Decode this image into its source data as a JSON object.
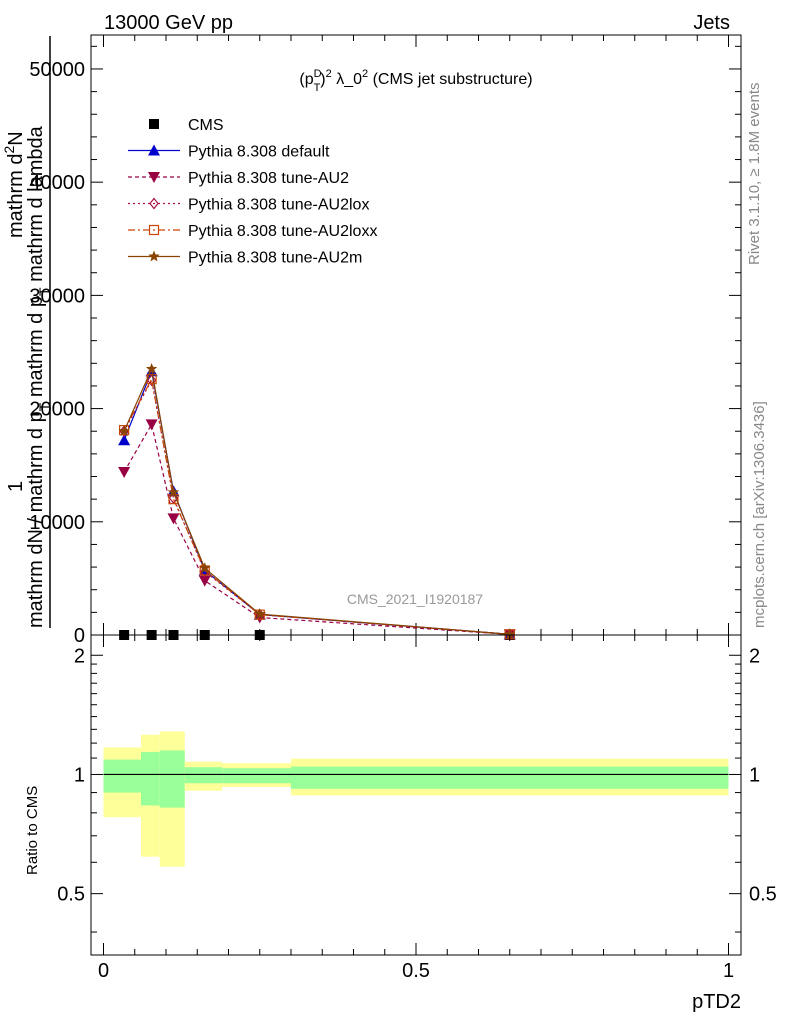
{
  "header": {
    "left": "13000 GeV pp",
    "right": "Jets"
  },
  "side_labels": {
    "rivet": "Rivet 3.1.10, ≥ 1.8M events",
    "mcplots": "mcplots.cern.ch [arXiv:1306.3436]"
  },
  "watermark": "CMS_2021_I1920187",
  "colors": {
    "default": "#0000cc",
    "au2": "#990044",
    "au2lox": "#aa1144",
    "au2loxx": "#cc4400",
    "au2m": "#884400",
    "band_inner": "#99ff99",
    "band_outer": "#ffff99"
  },
  "chart_data": [
    {
      "type": "line",
      "title": "(p_T^D)^2 λ_0^2 (CMS jet substructure)",
      "ylabel": "1 / mathrm dN / mathrm d p_T mathrm d p_T mathrm d lambda mathrm d^2N",
      "ylim": [
        0,
        53000
      ],
      "xlim": [
        -0.02,
        1.02
      ],
      "y_ticks": [
        "0",
        "10000",
        "20000",
        "30000",
        "40000",
        "50000"
      ],
      "x": [
        0.033,
        0.077,
        0.112,
        0.162,
        0.25,
        0.65
      ],
      "series": [
        {
          "name": "CMS",
          "style": "data",
          "values": [
            0,
            0,
            0,
            0,
            0,
            0
          ]
        },
        {
          "name": "Pythia 8.308 default",
          "style": "default",
          "values": [
            17200,
            23300,
            12700,
            5700,
            1800,
            60
          ]
        },
        {
          "name": "Pythia 8.308 tune-AU2",
          "style": "au2",
          "values": [
            14400,
            18600,
            10300,
            4800,
            1550,
            50
          ]
        },
        {
          "name": "Pythia 8.308 tune-AU2lox",
          "style": "au2lox",
          "values": [
            18000,
            22500,
            12100,
            5600,
            1800,
            60
          ]
        },
        {
          "name": "Pythia 8.308 tune-AU2loxx",
          "style": "au2loxx",
          "values": [
            18100,
            22600,
            12000,
            5700,
            1800,
            60
          ]
        },
        {
          "name": "Pythia 8.308 tune-AU2m",
          "style": "au2m",
          "values": [
            18000,
            23500,
            12600,
            5900,
            1850,
            60
          ]
        }
      ]
    },
    {
      "type": "area",
      "ylabel": "Ratio to CMS",
      "xlabel": "pTD2",
      "ylim": [
        0.35,
        2.25
      ],
      "y_ticks": [
        "0.5",
        "1",
        "2"
      ],
      "x_ticks": [
        "0",
        "0.5",
        "1"
      ],
      "bins": [
        {
          "x0": 0.0,
          "x1": 0.06,
          "inner": [
            0.9,
            1.09
          ],
          "outer": [
            0.78,
            1.17
          ]
        },
        {
          "x0": 0.06,
          "x1": 0.09,
          "inner": [
            0.835,
            1.14
          ],
          "outer": [
            0.62,
            1.26
          ]
        },
        {
          "x0": 0.09,
          "x1": 0.13,
          "inner": [
            0.825,
            1.15
          ],
          "outer": [
            0.585,
            1.285
          ]
        },
        {
          "x0": 0.13,
          "x1": 0.19,
          "inner": [
            0.95,
            1.043
          ],
          "outer": [
            0.91,
            1.077
          ]
        },
        {
          "x0": 0.19,
          "x1": 0.3,
          "inner": [
            0.95,
            1.037
          ],
          "outer": [
            0.93,
            1.067
          ]
        },
        {
          "x0": 0.3,
          "x1": 1.0,
          "inner": [
            0.92,
            1.047
          ],
          "outer": [
            0.885,
            1.096
          ]
        }
      ],
      "reference": 1.0
    }
  ]
}
